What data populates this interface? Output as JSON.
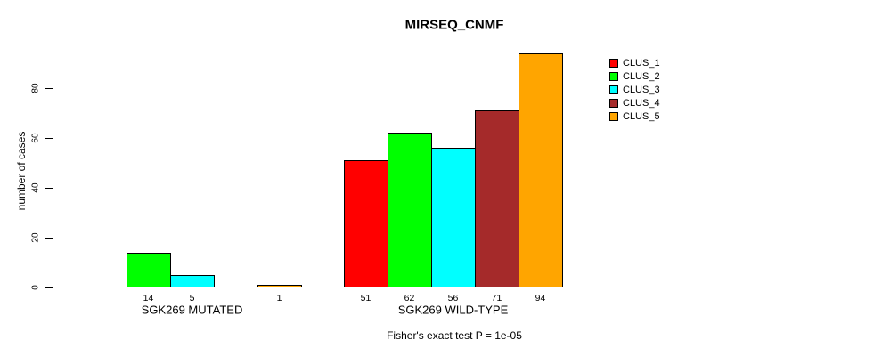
{
  "chart_data": {
    "type": "bar",
    "title": "MIRSEQ_CNMF",
    "ylabel": "number of cases",
    "xlabel": "",
    "footnote": "Fisher's exact test P = 1e-05",
    "categories": [
      "SGK269 MUTATED",
      "SGK269 WILD-TYPE"
    ],
    "series": [
      {
        "name": "CLUS_1",
        "color": "#ff0000",
        "values": [
          0,
          51
        ]
      },
      {
        "name": "CLUS_2",
        "color": "#00ff00",
        "values": [
          14,
          62
        ]
      },
      {
        "name": "CLUS_3",
        "color": "#00ffff",
        "values": [
          5,
          56
        ]
      },
      {
        "name": "CLUS_4",
        "color": "#a52a2a",
        "values": [
          0,
          71
        ]
      },
      {
        "name": "CLUS_5",
        "color": "#ffa500",
        "values": [
          1,
          94
        ]
      }
    ],
    "value_labels_shown": [
      [
        14,
        5,
        1
      ],
      [
        51,
        62,
        56,
        71,
        94
      ]
    ],
    "yticks": [
      0,
      20,
      40,
      60,
      80
    ],
    "ylim": [
      0,
      94
    ],
    "grid": false,
    "legend_position": "right",
    "background_color": "#ffffff",
    "axis_color": "#000000"
  }
}
